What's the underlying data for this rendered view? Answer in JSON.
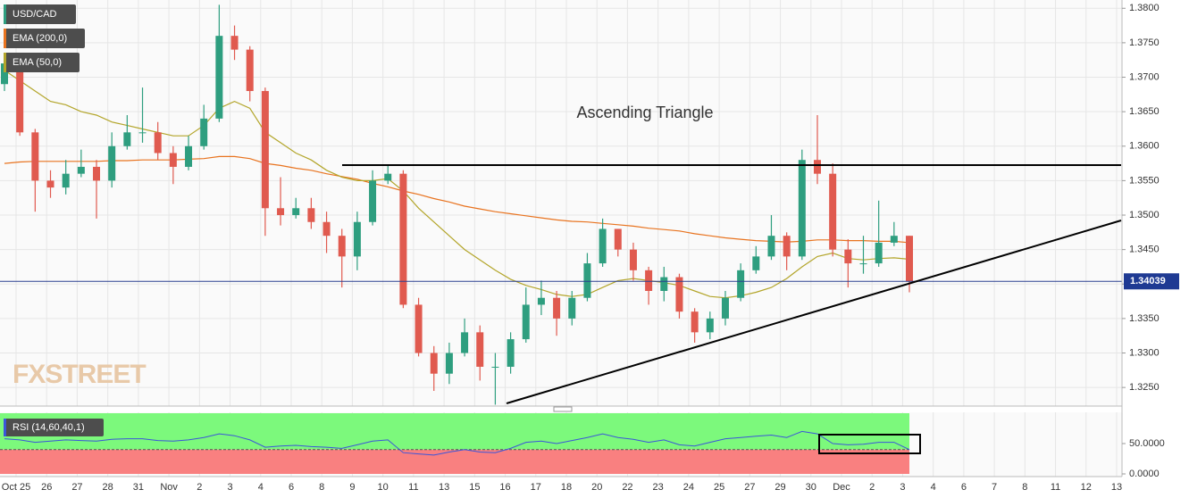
{
  "chart_data": {
    "type": "candlestick",
    "title": "USD/CAD",
    "color_up": "#2e9e7f",
    "color_down": "#e05a4f",
    "open": [
      1.369,
      1.372,
      1.362,
      1.355,
      1.354,
      1.356,
      1.357,
      1.355,
      1.36,
      1.362,
      1.362,
      1.359,
      1.357,
      1.36,
      1.364,
      1.376,
      1.374,
      1.368,
      1.351,
      1.35,
      1.351,
      1.349,
      1.347,
      1.344,
      1.349,
      1.355,
      1.356,
      1.337,
      1.33,
      1.327,
      1.33,
      1.333,
      1.328,
      1.328,
      1.332,
      1.337,
      1.338,
      1.335,
      1.338,
      1.343,
      1.348,
      1.345,
      1.342,
      1.339,
      1.341,
      1.336,
      1.333,
      1.335,
      1.338,
      1.342,
      1.344,
      1.347,
      1.344,
      1.358,
      1.356,
      1.345,
      1.343,
      1.343,
      1.346,
      1.347
    ],
    "high": [
      1.3735,
      1.373,
      1.3625,
      1.3565,
      1.358,
      1.3595,
      1.358,
      1.362,
      1.3645,
      1.3685,
      1.3635,
      1.36,
      1.3615,
      1.366,
      1.3805,
      1.3775,
      1.3745,
      1.3685,
      1.3555,
      1.3525,
      1.3525,
      1.3505,
      1.348,
      1.3505,
      1.3565,
      1.3572,
      1.3565,
      1.338,
      1.331,
      1.3315,
      1.335,
      1.334,
      1.33,
      1.333,
      1.3395,
      1.3405,
      1.339,
      1.339,
      1.3445,
      1.3495,
      1.348,
      1.346,
      1.3425,
      1.3425,
      1.3415,
      1.3365,
      1.336,
      1.339,
      1.343,
      1.3455,
      1.35,
      1.3475,
      1.3595,
      1.3645,
      1.3575,
      1.3465,
      1.347,
      1.3521,
      1.349,
      1.347
    ],
    "low": [
      1.368,
      1.3615,
      1.3505,
      1.3525,
      1.353,
      1.3555,
      1.3495,
      1.354,
      1.3595,
      1.3605,
      1.358,
      1.3545,
      1.3565,
      1.3595,
      1.3635,
      1.3725,
      1.3665,
      1.347,
      1.3485,
      1.3495,
      1.348,
      1.3445,
      1.3395,
      1.342,
      1.3485,
      1.3545,
      1.3365,
      1.3295,
      1.3245,
      1.3255,
      1.3295,
      1.326,
      1.3225,
      1.327,
      1.3315,
      1.3355,
      1.3325,
      1.334,
      1.3375,
      1.3425,
      1.344,
      1.3405,
      1.337,
      1.3375,
      1.335,
      1.3315,
      1.332,
      1.334,
      1.3375,
      1.3415,
      1.3435,
      1.342,
      1.3435,
      1.3545,
      1.344,
      1.3395,
      1.3415,
      1.3425,
      1.3455,
      1.3388
    ],
    "close": [
      1.372,
      1.362,
      1.355,
      1.354,
      1.356,
      1.357,
      1.355,
      1.36,
      1.362,
      1.362,
      1.359,
      1.357,
      1.36,
      1.364,
      1.376,
      1.374,
      1.368,
      1.351,
      1.35,
      1.351,
      1.349,
      1.347,
      1.344,
      1.349,
      1.355,
      1.356,
      1.337,
      1.33,
      1.327,
      1.33,
      1.333,
      1.328,
      1.328,
      1.332,
      1.337,
      1.338,
      1.335,
      1.338,
      1.343,
      1.348,
      1.345,
      1.342,
      1.339,
      1.341,
      1.336,
      1.333,
      1.335,
      1.338,
      1.342,
      1.344,
      1.347,
      1.344,
      1.358,
      1.356,
      1.345,
      1.343,
      1.343,
      1.346,
      1.347,
      1.3404
    ],
    "series": [
      {
        "name": "EMA (200,0)",
        "color": "#e8731f",
        "values": [
          1.3575,
          1.3577,
          1.3578,
          1.3578,
          1.3578,
          1.3578,
          1.3578,
          1.3579,
          1.3579,
          1.358,
          1.358,
          1.358,
          1.3581,
          1.3582,
          1.3585,
          1.3585,
          1.3582,
          1.3575,
          1.3572,
          1.3568,
          1.3565,
          1.356,
          1.3556,
          1.3552,
          1.3546,
          1.3541,
          1.3535,
          1.353,
          1.3524,
          1.3519,
          1.3513,
          1.3509,
          1.3505,
          1.3502,
          1.3499,
          1.3496,
          1.3493,
          1.3491,
          1.349,
          1.3488,
          1.3486,
          1.3484,
          1.3481,
          1.3479,
          1.3477,
          1.3473,
          1.347,
          1.3467,
          1.3465,
          1.3463,
          1.3462,
          1.3461,
          1.3462,
          1.3464,
          1.3464,
          1.3463,
          1.3463,
          1.3462,
          1.3462,
          1.346
        ]
      },
      {
        "name": "EMA (50,0)",
        "color": "#b3a52a",
        "values": [
          1.371,
          1.3695,
          1.368,
          1.3665,
          1.366,
          1.365,
          1.3645,
          1.3635,
          1.363,
          1.3625,
          1.362,
          1.3615,
          1.3615,
          1.363,
          1.3655,
          1.3665,
          1.3655,
          1.362,
          1.3605,
          1.359,
          1.358,
          1.3565,
          1.3555,
          1.355,
          1.355,
          1.3553,
          1.3535,
          1.351,
          1.349,
          1.347,
          1.345,
          1.3435,
          1.342,
          1.3407,
          1.3398,
          1.3392,
          1.3385,
          1.3382,
          1.3385,
          1.3395,
          1.3405,
          1.3408,
          1.3405,
          1.3402,
          1.3398,
          1.339,
          1.3382,
          1.338,
          1.3383,
          1.3388,
          1.3395,
          1.3408,
          1.3425,
          1.344,
          1.3445,
          1.3437,
          1.3435,
          1.3437,
          1.3438,
          1.3436
        ]
      }
    ],
    "ylim": [
      1.3223,
      1.3812
    ],
    "yticks": [
      {
        "value": 1.325,
        "label": "1.3250"
      },
      {
        "value": 1.33,
        "label": "1.3300"
      },
      {
        "value": 1.335,
        "label": "1.3350"
      },
      {
        "value": 1.34,
        "label": "1.3400"
      },
      {
        "value": 1.345,
        "label": "1.3450"
      },
      {
        "value": 1.35,
        "label": "1.3500"
      },
      {
        "value": 1.355,
        "label": "1.3550"
      },
      {
        "value": 1.36,
        "label": "1.3600"
      },
      {
        "value": 1.365,
        "label": "1.3650"
      },
      {
        "value": 1.37,
        "label": "1.3700"
      },
      {
        "value": 1.375,
        "label": "1.3750"
      },
      {
        "value": 1.38,
        "label": "1.3800"
      }
    ],
    "x_labels": [
      "Oct 25",
      "26",
      "27",
      "28",
      "31",
      "Nov",
      "2",
      "3",
      "4",
      "6",
      "8",
      "9",
      "10",
      "11",
      "13",
      "15",
      "16",
      "17",
      "18",
      "20",
      "22",
      "23",
      "24",
      "25",
      "27",
      "29",
      "30",
      "Dec",
      "2",
      "3",
      "4",
      "6",
      "7",
      "8",
      "11",
      "12",
      "13"
    ],
    "grid": true,
    "last_price": 1.34039,
    "annotation": "Ascending Triangle",
    "watermark": "FXSTREET",
    "indicator": {
      "name": "RSI (14,60,40,1)",
      "color": "#3b55d9",
      "zone_level": 40,
      "ylim": [
        0,
        100
      ],
      "yticks": [
        {
          "value": 0,
          "label": "0.0000"
        },
        {
          "value": 50,
          "label": "50.0000"
        }
      ],
      "values": [
        58,
        56,
        52,
        54,
        56,
        55,
        54,
        57,
        58,
        58,
        55,
        54,
        56,
        60,
        66,
        63,
        56,
        44,
        46,
        47,
        45,
        44,
        42,
        48,
        54,
        56,
        35,
        33,
        31,
        36,
        40,
        36,
        35,
        42,
        52,
        54,
        50,
        55,
        60,
        66,
        60,
        57,
        52,
        56,
        48,
        46,
        52,
        58,
        60,
        62,
        64,
        60,
        70,
        66,
        50,
        48,
        49,
        52,
        52,
        40
      ]
    }
  }
}
